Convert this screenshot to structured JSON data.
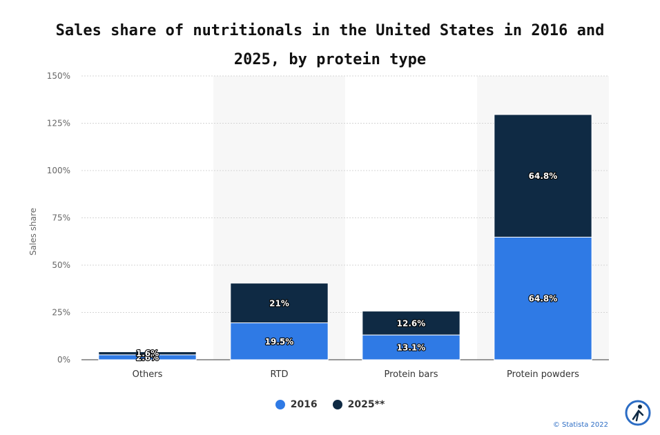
{
  "chart_data": {
    "type": "bar",
    "stacked": true,
    "title": "Sales share of nutritionals in the United States in 2016 and 2025, by protein type",
    "xlabel": "",
    "ylabel": "Sales share",
    "categories": [
      "Others",
      "RTD",
      "Protein bars",
      "Protein powders"
    ],
    "series": [
      {
        "name": "2016",
        "values": [
          2.6,
          19.5,
          13.1,
          64.8
        ],
        "labels": [
          "2.6%",
          "19.5%",
          "13.1%",
          "64.8%"
        ],
        "color": "#2f7ae5"
      },
      {
        "name": "2025**",
        "values": [
          1.6,
          21,
          12.6,
          64.8
        ],
        "labels": [
          "1.6%",
          "21%",
          "12.6%",
          "64.8%"
        ],
        "color": "#0f2a44"
      }
    ],
    "ylim": [
      0,
      150
    ],
    "yticks": [
      "0%",
      "25%",
      "50%",
      "75%",
      "100%",
      "125%",
      "150%"
    ],
    "grid": true,
    "legend_position": "bottom"
  },
  "credit": "© Statista 2022",
  "colors": {
    "band": "#f7f7f7",
    "grid": "#d4d4d4"
  }
}
